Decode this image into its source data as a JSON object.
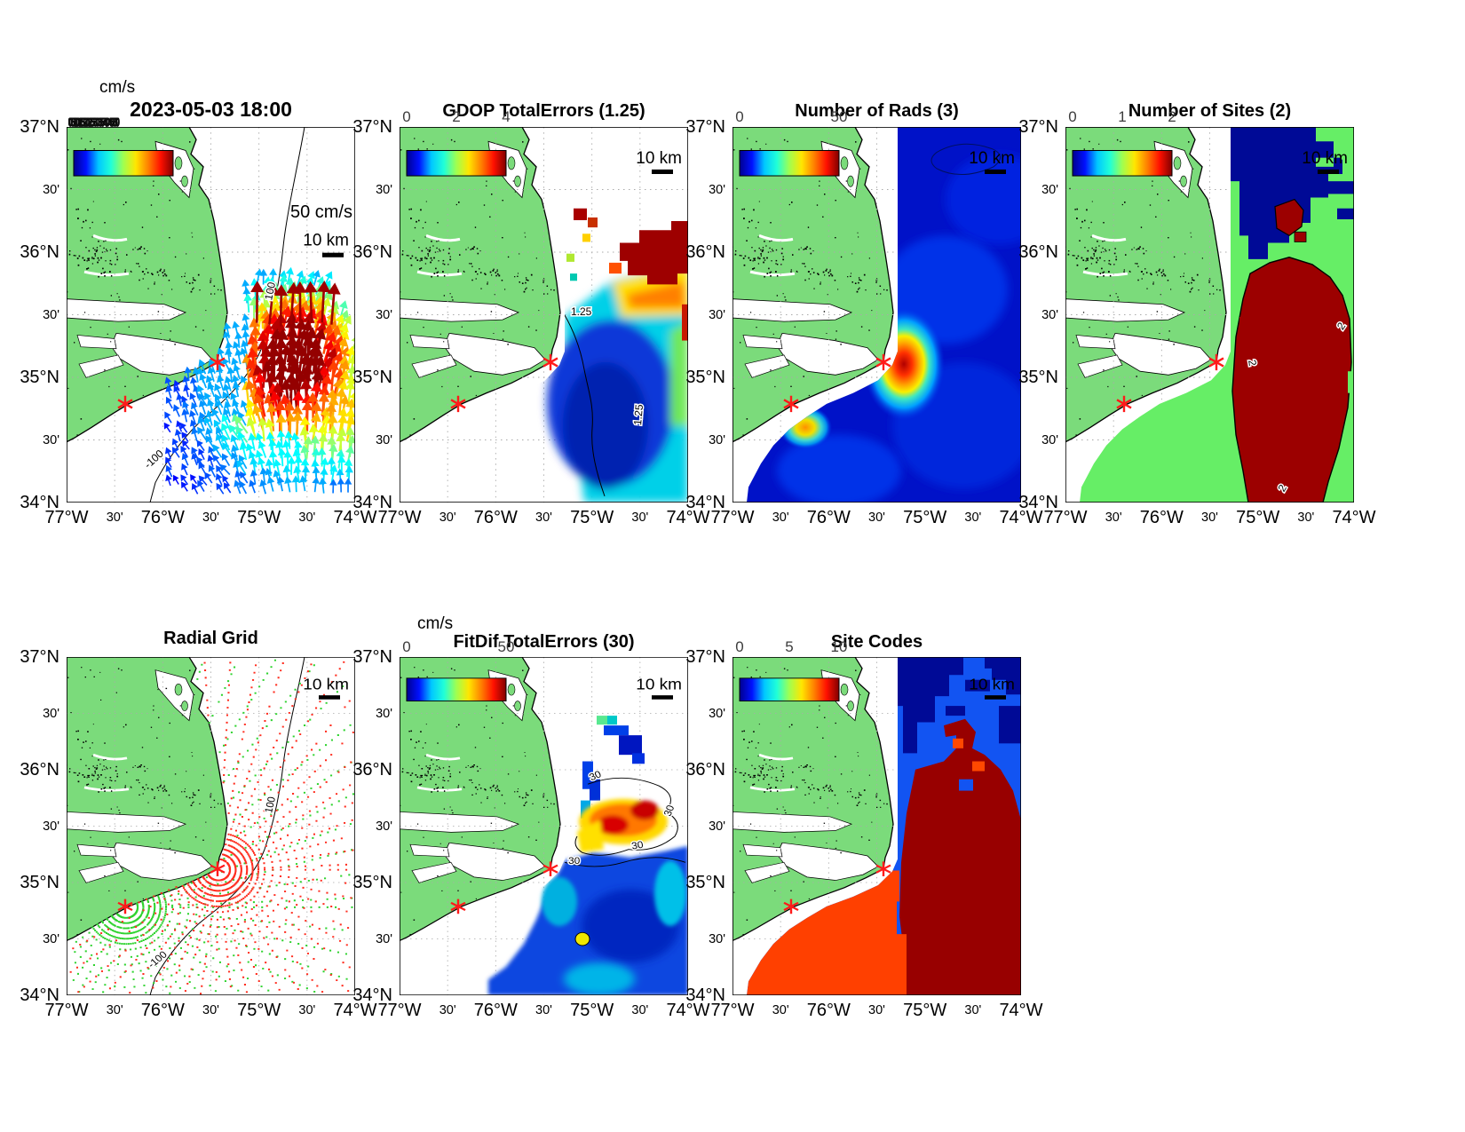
{
  "figure": {
    "background": "#ffffff"
  },
  "axes": {
    "lat_ticks": [
      "37°N",
      "30'",
      "36°N",
      "30'",
      "35°N",
      "30'",
      "34°N"
    ],
    "lon_ticks": [
      "77°W",
      "30'",
      "76°W",
      "30'",
      "75°W",
      "30'",
      "74°W"
    ]
  },
  "colormap": {
    "name": "jet",
    "stops": [
      "#00008F",
      "#0010FF",
      "#00C8FF",
      "#20FFD8",
      "#A0FF50",
      "#FFE600",
      "#FF8000",
      "#FF1000",
      "#800000"
    ]
  },
  "colors": {
    "land_green": "#7BDB7B",
    "sites_value_green": "#66EE66",
    "navy": "#000A96",
    "royal_blue": "#1254F2",
    "dark_red": "#980000",
    "orange_red": "#FF4000",
    "site_marker_red": "#FF1A1A",
    "radial_dot_red": "#FF2D1F",
    "radial_dot_green": "#2FD32F"
  },
  "panels": [
    {
      "id": "currents",
      "title": "2023-05-03 18:00",
      "units_label": "cm/s",
      "colorbar_overlapped_ticks": "0 5 10 15 20 25 30 35 40 45 50",
      "vector_scale_label": "50 cm/s",
      "scale_label": "10 km",
      "contour_labels": [
        "100",
        "-100"
      ]
    },
    {
      "id": "gdop",
      "title": "GDOP TotalErrors (1.25)",
      "colorbar_ticks": [
        "0",
        "2",
        "4"
      ],
      "scale_label": "10 km",
      "contour_labels": [
        "1.25",
        "1.25"
      ]
    },
    {
      "id": "numrads",
      "title": "Number of Rads (3)",
      "colorbar_ticks": [
        "0",
        "50"
      ],
      "scale_label": "10 km",
      "contour_labels": []
    },
    {
      "id": "numsites",
      "title": "Number of Sites (2)",
      "colorbar_ticks": [
        "0",
        "1",
        "2"
      ],
      "scale_label": "10 km",
      "contour_labels": [
        "2",
        "2",
        "2"
      ]
    },
    {
      "id": "radialgrid",
      "title": "Radial Grid",
      "scale_label": "10 km",
      "contour_labels": [
        "100",
        "-100"
      ]
    },
    {
      "id": "fitdif",
      "title": "FitDif TotalErrors (30)",
      "units_label": "cm/s",
      "colorbar_ticks": [
        "0",
        "50"
      ],
      "scale_label": "10 km",
      "contour_labels": [
        "30",
        "30",
        "30",
        "30"
      ]
    },
    {
      "id": "sitecodes",
      "title": "Site Codes",
      "colorbar_ticks": [
        "0",
        "5",
        "10"
      ],
      "scale_label": "10 km",
      "contour_labels": []
    }
  ]
}
